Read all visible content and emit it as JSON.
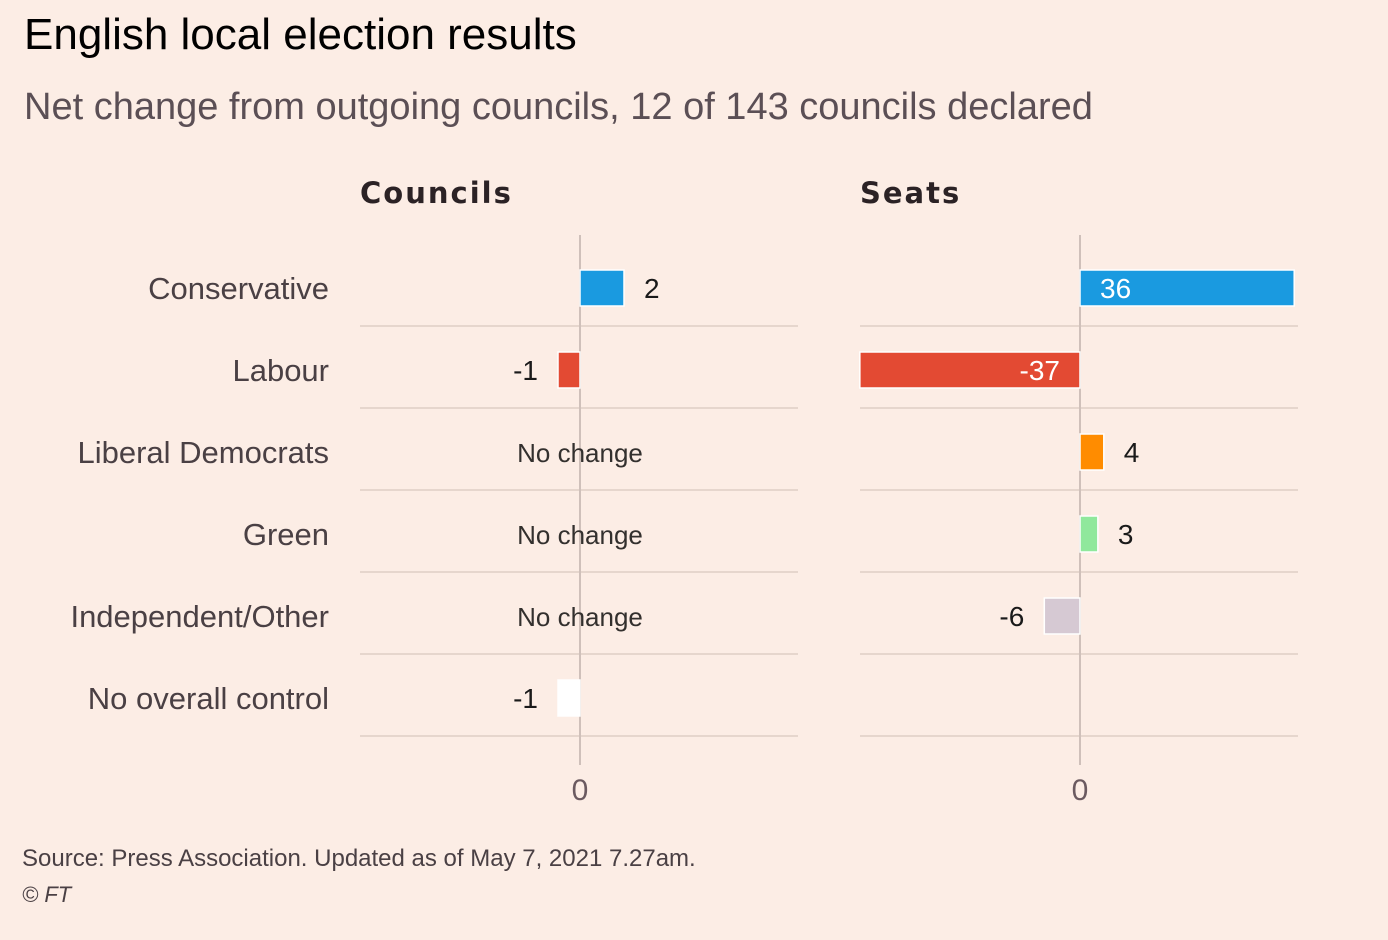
{
  "title": "English local election results",
  "subtitle": "Net change from outgoing councils, 12 of 143 councils declared",
  "source": "Source: Press Association. Updated as of May 7, 2021 7.27am.",
  "credit": "© FT",
  "chart_data": [
    {
      "type": "bar",
      "orientation": "horizontal",
      "title": "Councils",
      "categories": [
        "Conservative",
        "Labour",
        "Liberal Democrats",
        "Green",
        "Independent/Other",
        "No overall control"
      ],
      "values": [
        2,
        -1,
        0,
        0,
        0,
        -1
      ],
      "labels": [
        "2",
        "-1",
        "No change",
        "No change",
        "No change",
        "-1"
      ],
      "colors": [
        "#1a9ae0",
        "#e34a33",
        "#ff8c00",
        "#90e89c",
        "#d6c9d3",
        "#ffffff"
      ],
      "xticks": [
        "0"
      ],
      "grid": true
    },
    {
      "type": "bar",
      "orientation": "horizontal",
      "title": "Seats",
      "categories": [
        "Conservative",
        "Labour",
        "Liberal Democrats",
        "Green",
        "Independent/Other",
        "No overall control"
      ],
      "values": [
        36,
        -37,
        4,
        3,
        -6,
        null
      ],
      "labels": [
        "36",
        "-37",
        "4",
        "3",
        "-6",
        ""
      ],
      "colors": [
        "#1a9ae0",
        "#e34a33",
        "#ff8c00",
        "#90e89c",
        "#d6c9d3",
        "#ffffff"
      ],
      "xticks": [
        "0"
      ],
      "grid": true
    }
  ]
}
